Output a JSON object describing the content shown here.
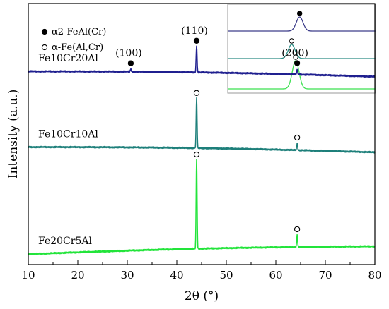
{
  "chart_data": {
    "type": "line",
    "title": "",
    "xlabel": "2θ (°)",
    "ylabel": "Intensity (a.u.)",
    "xlim": [
      10,
      80
    ],
    "xticks": [
      "10",
      "20",
      "30",
      "40",
      "50",
      "60",
      "70",
      "80"
    ],
    "y_ticks_shown": false,
    "legend_position": "top-left",
    "legend": [
      {
        "marker": "filled-circle",
        "label": "α2-FeAl(Cr)"
      },
      {
        "marker": "open-circle",
        "label": "α-Fe(Al,Cr)"
      }
    ],
    "peak_labels": [
      {
        "text": "(100)",
        "x": 30.7,
        "series": "Fe10Cr20Al"
      },
      {
        "text": "(110)",
        "x": 44.0,
        "series": "Fe10Cr20Al"
      },
      {
        "text": "(200)",
        "x": 64.3,
        "series": "Fe10Cr20Al"
      }
    ],
    "series": [
      {
        "name": "Fe10Cr20Al",
        "color": "#1f1f8f",
        "marker": "filled-circle",
        "baseline": [
          0.74,
          0.72
        ],
        "peaks": [
          {
            "x": 30.7,
            "height": 0.01
          },
          {
            "x": 44.0,
            "height": 0.1
          },
          {
            "x": 64.3,
            "height": 0.02
          }
        ]
      },
      {
        "name": "Fe10Cr10Al",
        "color": "#1d7f7a",
        "marker": "open-circle",
        "baseline": [
          0.45,
          0.43
        ],
        "peaks": [
          {
            "x": 44.0,
            "height": 0.19
          },
          {
            "x": 64.3,
            "height": 0.025
          }
        ]
      },
      {
        "name": "Fe20Cr5Al",
        "color": "#22e43a",
        "marker": "open-circle",
        "baseline": [
          0.04,
          0.07
        ],
        "peaks": [
          {
            "x": 44.0,
            "height": 0.34
          },
          {
            "x": 64.3,
            "height": 0.045
          }
        ]
      }
    ],
    "inset": {
      "position": "top-right",
      "series": [
        {
          "name": "Fe10Cr20Al",
          "color": "#3d3d8a",
          "marker": "filled-circle",
          "peak_x": 44.3
        },
        {
          "name": "Fe10Cr10Al",
          "color": "#2a8c84",
          "marker": "open-circle",
          "peak_x": 44.1
        },
        {
          "name": "Fe20Cr5Al",
          "color": "#3be04f",
          "marker": "open-circle",
          "peak_x": 44.2
        }
      ]
    }
  }
}
